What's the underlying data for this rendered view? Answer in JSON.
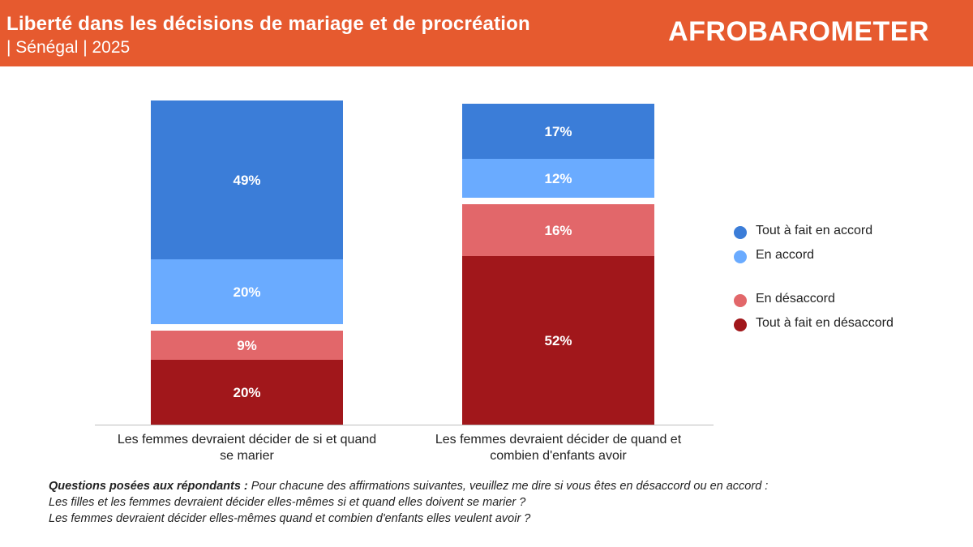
{
  "header": {
    "title": "Liberté dans les décisions de mariage et de procréation",
    "subtitle": "| Sénégal | 2025",
    "logo_text": "AFROBAROMETER",
    "background_color": "#E65A2F"
  },
  "chart_data": {
    "type": "bar",
    "stacked": true,
    "categories": [
      "Les femmes devraient décider de si et quand se marier",
      "Les femmes devraient décider de quand et combien d'enfants avoir"
    ],
    "series": [
      {
        "name": "Tout à fait en accord",
        "values": [
          49,
          17
        ],
        "color": "#3B7DD8"
      },
      {
        "name": "En accord",
        "values": [
          20,
          12
        ],
        "color": "#6AABFF"
      },
      {
        "name": "En désaccord",
        "values": [
          9,
          16
        ],
        "color": "#E2676A"
      },
      {
        "name": "Tout à fait en désaccord",
        "values": [
          20,
          52
        ],
        "color": "#A1171B"
      }
    ],
    "data_labels": [
      [
        "49%",
        "17%"
      ],
      [
        "20%",
        "12%"
      ],
      [
        "9%",
        "16%"
      ],
      [
        "20%",
        "52%"
      ]
    ],
    "legend_position": "right",
    "grid": false
  },
  "legend": {
    "items": [
      {
        "label": "Tout à fait en accord",
        "color": "#3B7DD8"
      },
      {
        "label": "En accord",
        "color": "#6AABFF"
      },
      {
        "label": "En désaccord",
        "color": "#E2676A"
      },
      {
        "label": "Tout à fait en désaccord",
        "color": "#A1171B"
      }
    ]
  },
  "footnote": {
    "lead": "Questions posées aux répondants :",
    "intro": " Pour chacune des affirmations suivantes, veuillez me dire si vous êtes en désaccord ou en accord :",
    "q1": "Les filles et les femmes devraient décider elles-mêmes si et quand elles doivent se marier ?",
    "q2": "Les femmes devraient décider elles-mêmes quand et combien d'enfants elles veulent avoir ?"
  }
}
